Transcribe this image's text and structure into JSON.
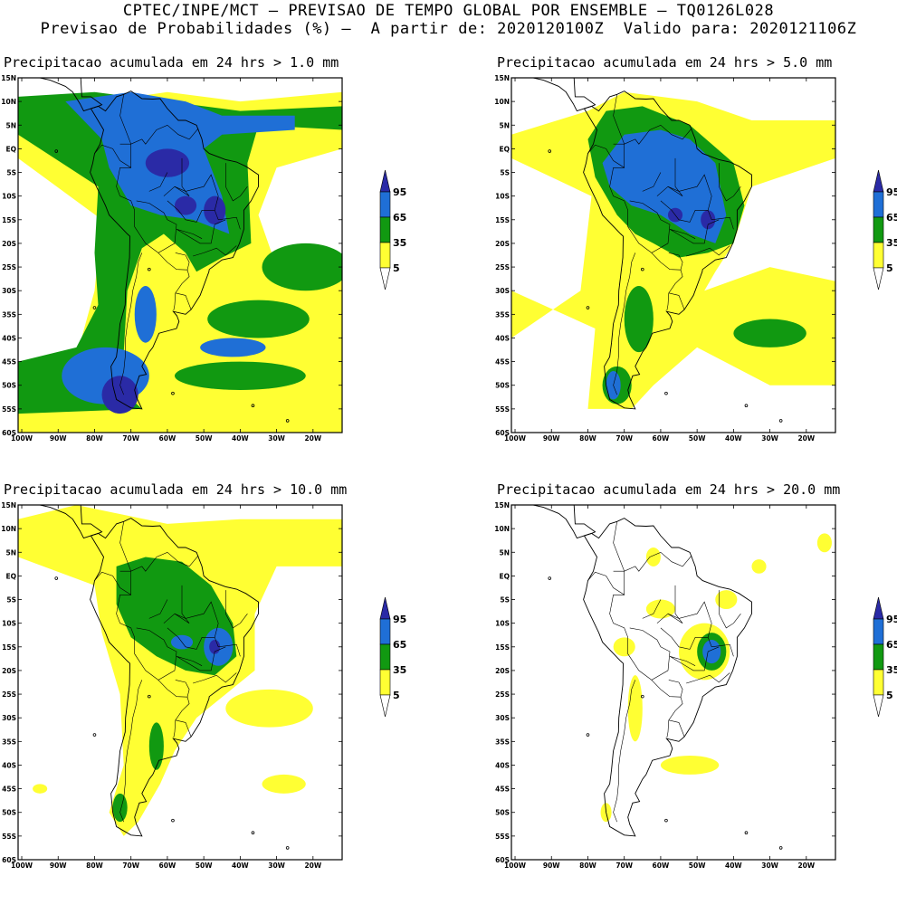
{
  "header": {
    "line1": "CPTEC/INPE/MCT – PREVISAO DE TEMPO GLOBAL POR ENSEMBLE – TQ0126L028",
    "line2": "Previsao de Probabilidades (%) –  A partir de: 2020120100Z  Valido para: 2020121106Z"
  },
  "colors": {
    "lvl5": "#ffff33",
    "lvl35": "#119911",
    "lvl65": "#1f6fd6",
    "lvl95": "#2a2aa6",
    "frame": "#000000"
  },
  "axes": {
    "lat_labels": [
      "15N",
      "10N",
      "5N",
      "EQ",
      "5S",
      "10S",
      "15S",
      "20S",
      "25S",
      "30S",
      "35S",
      "40S",
      "45S",
      "50S",
      "55S",
      "60S"
    ],
    "lon_labels": [
      "100W",
      "90W",
      "80W",
      "70W",
      "60W",
      "50W",
      "40W",
      "30W",
      "20W"
    ]
  },
  "legend": {
    "labels": [
      "95",
      "65",
      "35",
      "5"
    ]
  },
  "panels": [
    {
      "title": "Precipitacao acumulada em 24 hrs > 1.0 mm",
      "threshold_mm": 1.0
    },
    {
      "title": "Precipitacao acumulada em 24 hrs > 5.0 mm",
      "threshold_mm": 5.0
    },
    {
      "title": "Precipitacao acumulada em 24 hrs > 10.0 mm",
      "threshold_mm": 10.0
    },
    {
      "title": "Precipitacao acumulada em 24 hrs > 20.0 mm",
      "threshold_mm": 20.0
    }
  ],
  "map_extent": {
    "lon_min": -101,
    "lon_max": -12,
    "lat_min": -60,
    "lat_max": 15
  }
}
